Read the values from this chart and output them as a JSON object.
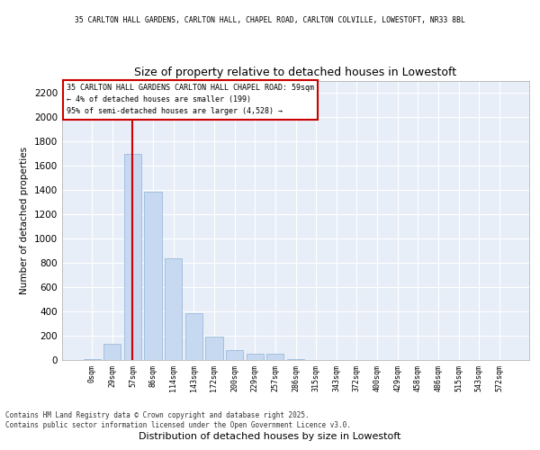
{
  "title_top": "35 CARLTON HALL GARDENS, CARLTON HALL, CHAPEL ROAD, CARLTON COLVILLE, LOWESTOFT, NR33 8BL",
  "title_main": "Size of property relative to detached houses in Lowestoft",
  "xlabel": "Distribution of detached houses by size in Lowestoft",
  "ylabel": "Number of detached properties",
  "annotation_line1": "35 CARLTON HALL GARDENS CARLTON HALL CHAPEL ROAD: 59sqm",
  "annotation_line2": "← 4% of detached houses are smaller (199)",
  "annotation_line3": "95% of semi-detached houses are larger (4,528) →",
  "bar_color": "#c6d9f0",
  "bar_edgecolor": "#8db3d8",
  "vline_color": "#cc0000",
  "vline_x": 2,
  "categories": [
    "0sqm",
    "29sqm",
    "57sqm",
    "86sqm",
    "114sqm",
    "143sqm",
    "172sqm",
    "200sqm",
    "229sqm",
    "257sqm",
    "286sqm",
    "315sqm",
    "343sqm",
    "372sqm",
    "400sqm",
    "429sqm",
    "458sqm",
    "486sqm",
    "515sqm",
    "543sqm",
    "572sqm"
  ],
  "values": [
    5,
    130,
    1700,
    1390,
    840,
    385,
    190,
    80,
    55,
    55,
    5,
    0,
    0,
    0,
    0,
    0,
    0,
    0,
    0,
    0,
    0
  ],
  "ylim": [
    0,
    2300
  ],
  "yticks": [
    0,
    200,
    400,
    600,
    800,
    1000,
    1200,
    1400,
    1600,
    1800,
    2000,
    2200
  ],
  "background_color": "#e8eef8",
  "grid_color": "#ffffff",
  "footer_line1": "Contains HM Land Registry data © Crown copyright and database right 2025.",
  "footer_line2": "Contains public sector information licensed under the Open Government Licence v3.0."
}
